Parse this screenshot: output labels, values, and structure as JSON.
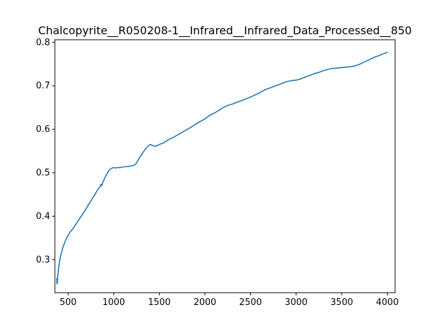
{
  "chart_data": {
    "type": "line",
    "title": "Chalcopyrite__R050208-1__Infrared__Infrared_Data_Processed__850",
    "xlabel": "",
    "ylabel": "",
    "xlim": [
      355,
      4085
    ],
    "ylim": [
      0.224,
      0.806
    ],
    "x_ticks": [
      500,
      1000,
      1500,
      2000,
      2500,
      3000,
      3500,
      4000
    ],
    "x_tick_labels": [
      "500",
      "1000",
      "1500",
      "2000",
      "2500",
      "3000",
      "3500",
      "4000"
    ],
    "y_ticks": [
      0.3,
      0.4,
      0.5,
      0.6,
      0.7,
      0.8
    ],
    "y_tick_labels": [
      "0.3",
      "0.4",
      "0.5",
      "0.6",
      "0.7",
      "0.8"
    ],
    "grid": false,
    "line_color": "#1f77b4",
    "series": [
      {
        "x": [
          376,
          378,
          380,
          383,
          385,
          390,
          395,
          400,
          410,
          420,
          430,
          440,
          460,
          480,
          500,
          520,
          540,
          560,
          580,
          600,
          625,
          650,
          675,
          700,
          725,
          750,
          775,
          800,
          825,
          850,
          860,
          870,
          880,
          890,
          900,
          925,
          950,
          975,
          1000,
          1025,
          1050,
          1075,
          1100,
          1125,
          1150,
          1175,
          1200,
          1225,
          1250,
          1275,
          1300,
          1325,
          1350,
          1375,
          1400,
          1425,
          1450,
          1475,
          1500,
          1550,
          1600,
          1650,
          1700,
          1750,
          1800,
          1850,
          1900,
          1950,
          2000,
          2050,
          2100,
          2150,
          2200,
          2250,
          2300,
          2350,
          2400,
          2450,
          2500,
          2550,
          2600,
          2650,
          2700,
          2750,
          2800,
          2850,
          2900,
          2950,
          3000,
          3050,
          3100,
          3150,
          3200,
          3250,
          3300,
          3350,
          3400,
          3450,
          3500,
          3550,
          3600,
          3650,
          3700,
          3750,
          3800,
          3850,
          3900,
          3950,
          4000
        ],
        "y": [
          0.256,
          0.244,
          0.258,
          0.247,
          0.262,
          0.268,
          0.278,
          0.287,
          0.3,
          0.31,
          0.318,
          0.326,
          0.338,
          0.348,
          0.356,
          0.363,
          0.368,
          0.373,
          0.38,
          0.386,
          0.394,
          0.402,
          0.41,
          0.418,
          0.427,
          0.435,
          0.444,
          0.452,
          0.461,
          0.468,
          0.473,
          0.47,
          0.478,
          0.482,
          0.487,
          0.497,
          0.506,
          0.51,
          0.512,
          0.511,
          0.512,
          0.512,
          0.513,
          0.514,
          0.514,
          0.515,
          0.516,
          0.517,
          0.522,
          0.532,
          0.54,
          0.548,
          0.555,
          0.561,
          0.565,
          0.563,
          0.561,
          0.562,
          0.565,
          0.569,
          0.576,
          0.581,
          0.587,
          0.593,
          0.599,
          0.605,
          0.612,
          0.618,
          0.624,
          0.632,
          0.637,
          0.643,
          0.65,
          0.655,
          0.658,
          0.662,
          0.666,
          0.67,
          0.674,
          0.679,
          0.684,
          0.69,
          0.694,
          0.698,
          0.702,
          0.706,
          0.71,
          0.712,
          0.713,
          0.716,
          0.72,
          0.724,
          0.728,
          0.731,
          0.735,
          0.738,
          0.74,
          0.741,
          0.742,
          0.743,
          0.744,
          0.746,
          0.75,
          0.755,
          0.76,
          0.765,
          0.769,
          0.773,
          0.777
        ]
      }
    ]
  }
}
